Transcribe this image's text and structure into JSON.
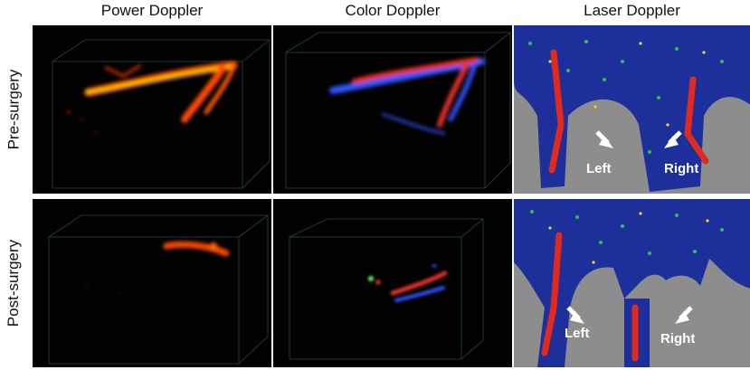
{
  "columns": {
    "power": "Power Doppler",
    "color": "Color Doppler",
    "laser": "Laser Doppler"
  },
  "rows": {
    "pre": "Pre-surgery",
    "post": "Post-surgery"
  },
  "laser_labels": {
    "left": "Left",
    "right": "Right"
  },
  "colors": {
    "power_flow": "#ff6a00",
    "color_flow_red": "#e2302b",
    "color_flow_blue": "#2f55ff",
    "laser_background": "#8d8d8d",
    "laser_tissue": "#1d2f9b"
  }
}
